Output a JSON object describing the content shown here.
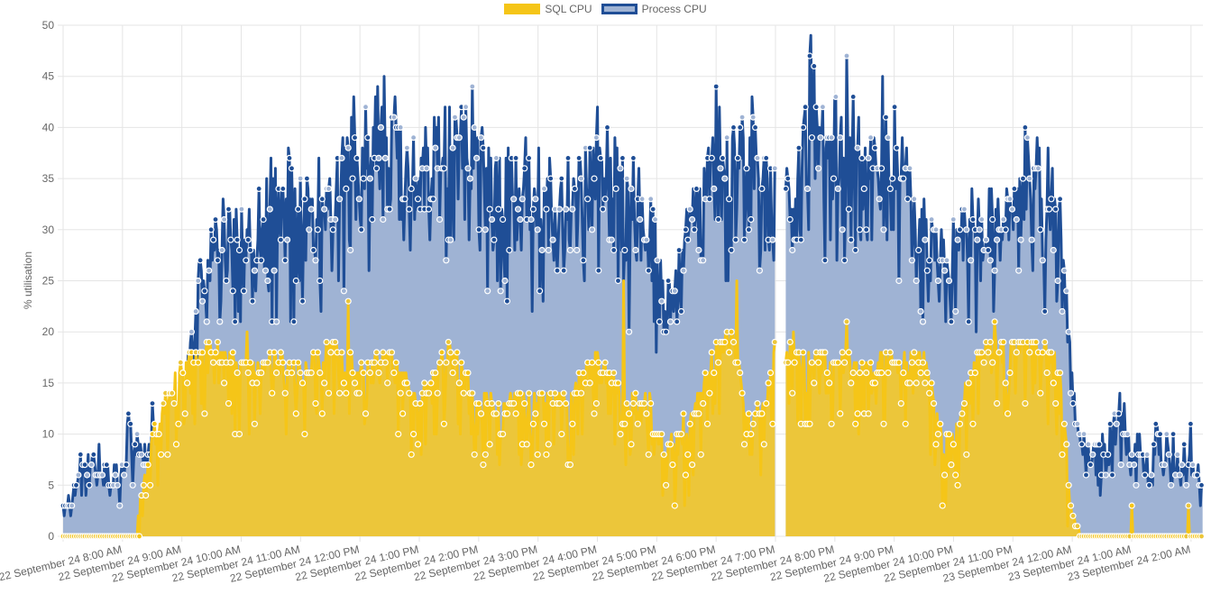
{
  "legend": [
    {
      "label": "SQL CPU",
      "fill": "#f5c518",
      "border": "#f5c518"
    },
    {
      "label": "Process CPU",
      "fill": "#9fb3d4",
      "border": "#1f4e96"
    }
  ],
  "chart_data": {
    "type": "area",
    "title": "",
    "xlabel": "",
    "ylabel": "% utilisation",
    "ylim": [
      0,
      50
    ],
    "yticks": [
      "0",
      "5",
      "10",
      "15",
      "20",
      "25",
      "30",
      "35",
      "40",
      "45",
      "50"
    ],
    "grid": true,
    "legend_position": "top",
    "x_range_hours": [
      7.0,
      26.2
    ],
    "x_tick_hours": [
      8,
      9,
      10,
      11,
      12,
      13,
      14,
      15,
      16,
      17,
      18,
      19,
      20,
      21,
      22,
      23,
      24,
      25,
      26
    ],
    "xtick_labels": [
      "22 September 24 8:00 AM",
      "22 September 24 9:00 AM",
      "22 September 24 10:00 AM",
      "22 September 24 11:00 AM",
      "22 September 24 12:00 PM",
      "22 September 24 1:00 PM",
      "22 September 24 2:00 PM",
      "22 September 24 3:00 PM",
      "22 September 24 4:00 PM",
      "22 September 24 5:00 PM",
      "22 September 24 6:00 PM",
      "22 September 24 7:00 PM",
      "22 September 24 8:00 PM",
      "22 September 24 9:00 PM",
      "22 September 24 10:00 PM",
      "22 September 24 11:00 PM",
      "23 September 24 12:00 AM",
      "23 September 24 1:00 AM",
      "23 September 24 2:00 AM"
    ],
    "gap_hours": [
      19.0,
      19.17
    ],
    "series": [
      {
        "name": "Process CPU",
        "color": "#1f4e96",
        "fill": "#9fb3d4",
        "segments": [
          {
            "t": 7.0,
            "v": 3
          },
          {
            "t": 7.3,
            "v": 8
          },
          {
            "t": 7.6,
            "v": 9
          },
          {
            "t": 7.9,
            "v": 7
          },
          {
            "t": 8.1,
            "v": 12
          },
          {
            "t": 8.3,
            "v": 9
          },
          {
            "t": 8.5,
            "v": 13
          },
          {
            "t": 8.7,
            "v": 8
          },
          {
            "t": 8.9,
            "v": 11
          },
          {
            "t": 9.1,
            "v": 18
          },
          {
            "t": 9.3,
            "v": 27
          },
          {
            "t": 9.5,
            "v": 30
          },
          {
            "t": 9.7,
            "v": 33
          },
          {
            "t": 10.0,
            "v": 32
          },
          {
            "t": 10.3,
            "v": 34
          },
          {
            "t": 10.5,
            "v": 37
          },
          {
            "t": 10.8,
            "v": 38
          },
          {
            "t": 11.0,
            "v": 35
          },
          {
            "t": 11.3,
            "v": 37
          },
          {
            "t": 11.5,
            "v": 35
          },
          {
            "t": 11.9,
            "v": 43
          },
          {
            "t": 12.1,
            "v": 42
          },
          {
            "t": 12.4,
            "v": 45
          },
          {
            "t": 12.6,
            "v": 43
          },
          {
            "t": 12.9,
            "v": 39
          },
          {
            "t": 13.1,
            "v": 40
          },
          {
            "t": 13.5,
            "v": 42
          },
          {
            "t": 13.9,
            "v": 44
          },
          {
            "t": 14.2,
            "v": 37
          },
          {
            "t": 14.5,
            "v": 38
          },
          {
            "t": 14.8,
            "v": 39
          },
          {
            "t": 15.2,
            "v": 37
          },
          {
            "t": 15.5,
            "v": 37
          },
          {
            "t": 15.8,
            "v": 38
          },
          {
            "t": 16.0,
            "v": 42
          },
          {
            "t": 16.3,
            "v": 39
          },
          {
            "t": 16.6,
            "v": 37
          },
          {
            "t": 16.9,
            "v": 33
          },
          {
            "t": 17.2,
            "v": 25
          },
          {
            "t": 17.5,
            "v": 32
          },
          {
            "t": 17.8,
            "v": 36
          },
          {
            "t": 18.0,
            "v": 44
          },
          {
            "t": 18.3,
            "v": 40
          },
          {
            "t": 18.6,
            "v": 43
          },
          {
            "t": 18.8,
            "v": 37
          },
          {
            "t": 19.0,
            "v": 36
          },
          {
            "t": 19.2,
            "v": 36
          },
          {
            "t": 19.4,
            "v": 38
          },
          {
            "t": 19.6,
            "v": 49
          },
          {
            "t": 19.8,
            "v": 42
          },
          {
            "t": 20.0,
            "v": 43
          },
          {
            "t": 20.2,
            "v": 47
          },
          {
            "t": 20.4,
            "v": 41
          },
          {
            "t": 20.6,
            "v": 39
          },
          {
            "t": 20.8,
            "v": 45
          },
          {
            "t": 21.0,
            "v": 42
          },
          {
            "t": 21.2,
            "v": 38
          },
          {
            "t": 21.5,
            "v": 33
          },
          {
            "t": 21.8,
            "v": 30
          },
          {
            "t": 22.0,
            "v": 31
          },
          {
            "t": 22.3,
            "v": 34
          },
          {
            "t": 22.6,
            "v": 34
          },
          {
            "t": 22.9,
            "v": 34
          },
          {
            "t": 23.2,
            "v": 40
          },
          {
            "t": 23.4,
            "v": 39
          },
          {
            "t": 23.6,
            "v": 38
          },
          {
            "t": 23.8,
            "v": 33
          },
          {
            "t": 24.0,
            "v": 16
          },
          {
            "t": 24.2,
            "v": 10
          },
          {
            "t": 24.5,
            "v": 10
          },
          {
            "t": 24.8,
            "v": 14
          },
          {
            "t": 25.1,
            "v": 10
          },
          {
            "t": 25.4,
            "v": 11
          },
          {
            "t": 25.7,
            "v": 10
          },
          {
            "t": 26.0,
            "v": 11
          },
          {
            "t": 26.2,
            "v": 5
          }
        ],
        "baseline": [
          {
            "t": 7.0,
            "v": 2
          },
          {
            "t": 9.0,
            "v": 5
          },
          {
            "t": 9.2,
            "v": 12
          },
          {
            "t": 9.5,
            "v": 17
          },
          {
            "t": 10.0,
            "v": 20
          },
          {
            "t": 11.0,
            "v": 20
          },
          {
            "t": 12.0,
            "v": 25
          },
          {
            "t": 13.0,
            "v": 28
          },
          {
            "t": 14.0,
            "v": 22
          },
          {
            "t": 15.0,
            "v": 22
          },
          {
            "t": 16.0,
            "v": 25
          },
          {
            "t": 17.0,
            "v": 15
          },
          {
            "t": 18.0,
            "v": 22
          },
          {
            "t": 19.0,
            "v": 22
          },
          {
            "t": 19.2,
            "v": 25
          },
          {
            "t": 20.0,
            "v": 27
          },
          {
            "t": 21.0,
            "v": 26
          },
          {
            "t": 22.0,
            "v": 15
          },
          {
            "t": 23.0,
            "v": 25
          },
          {
            "t": 23.8,
            "v": 20
          },
          {
            "t": 24.0,
            "v": 7
          },
          {
            "t": 24.2,
            "v": 4
          },
          {
            "t": 26.2,
            "v": 4
          }
        ]
      },
      {
        "name": "SQL CPU",
        "color": "#f5c518",
        "fill": "#ecc63a",
        "values": [
          {
            "t": 7.0,
            "v": 0
          },
          {
            "t": 8.25,
            "v": 0
          },
          {
            "t": 8.3,
            "v": 5
          },
          {
            "t": 8.6,
            "v": 12
          },
          {
            "t": 9.0,
            "v": 17
          },
          {
            "t": 9.5,
            "v": 19
          },
          {
            "t": 10.0,
            "v": 17
          },
          {
            "t": 10.5,
            "v": 18
          },
          {
            "t": 11.0,
            "v": 17
          },
          {
            "t": 11.5,
            "v": 19
          },
          {
            "t": 12.0,
            "v": 17
          },
          {
            "t": 12.5,
            "v": 18
          },
          {
            "t": 13.0,
            "v": 14
          },
          {
            "t": 13.5,
            "v": 19
          },
          {
            "t": 14.0,
            "v": 14
          },
          {
            "t": 14.5,
            "v": 14
          },
          {
            "t": 15.0,
            "v": 14
          },
          {
            "t": 15.5,
            "v": 14
          },
          {
            "t": 16.0,
            "v": 18
          },
          {
            "t": 16.5,
            "v": 14
          },
          {
            "t": 16.9,
            "v": 14
          },
          {
            "t": 17.0,
            "v": 10
          },
          {
            "t": 17.5,
            "v": 10
          },
          {
            "t": 17.7,
            "v": 14
          },
          {
            "t": 18.0,
            "v": 19
          },
          {
            "t": 18.3,
            "v": 20
          },
          {
            "t": 18.5,
            "v": 12
          },
          {
            "t": 18.8,
            "v": 13
          },
          {
            "t": 19.0,
            "v": 19
          },
          {
            "t": 19.17,
            "v": 19
          },
          {
            "t": 19.5,
            "v": 18
          },
          {
            "t": 20.0,
            "v": 18
          },
          {
            "t": 20.5,
            "v": 17
          },
          {
            "t": 21.0,
            "v": 18
          },
          {
            "t": 21.5,
            "v": 18
          },
          {
            "t": 21.8,
            "v": 10
          },
          {
            "t": 22.0,
            "v": 10
          },
          {
            "t": 22.3,
            "v": 17
          },
          {
            "t": 22.6,
            "v": 19
          },
          {
            "t": 23.0,
            "v": 19
          },
          {
            "t": 23.5,
            "v": 19
          },
          {
            "t": 23.8,
            "v": 17
          },
          {
            "t": 24.0,
            "v": 2
          },
          {
            "t": 24.15,
            "v": 0
          },
          {
            "t": 26.2,
            "v": 0
          }
        ],
        "spikes": [
          {
            "t": 10.1,
            "v": 20
          },
          {
            "t": 11.8,
            "v": 23
          },
          {
            "t": 16.45,
            "v": 25
          },
          {
            "t": 17.45,
            "v": 12
          },
          {
            "t": 18.35,
            "v": 25
          },
          {
            "t": 19.3,
            "v": 20
          },
          {
            "t": 20.2,
            "v": 21
          },
          {
            "t": 22.7,
            "v": 21
          },
          {
            "t": 25.0,
            "v": 3
          },
          {
            "t": 25.95,
            "v": 3
          }
        ]
      }
    ]
  }
}
